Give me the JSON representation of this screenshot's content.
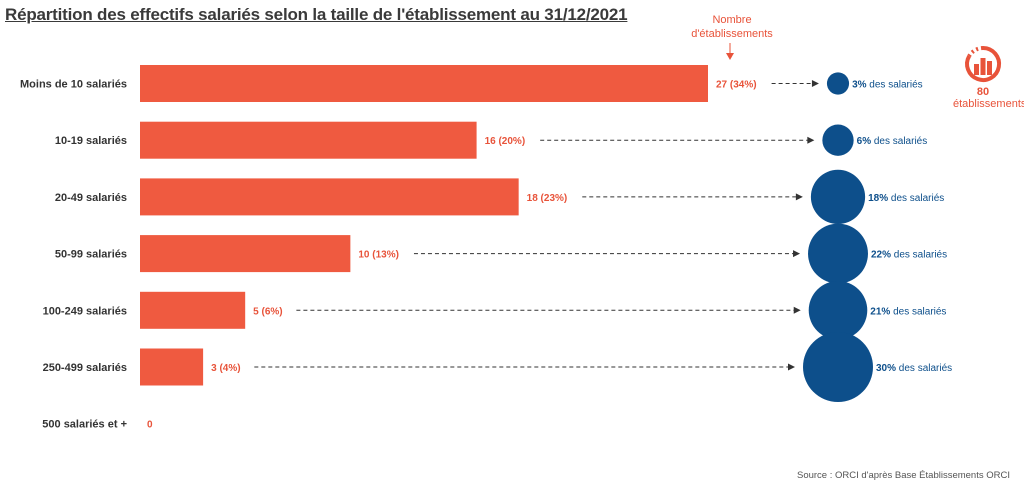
{
  "title": "Répartition des effectifs salariés selon la taille de l'établissement au 31/12/2021",
  "source": "Source : ORCI d'après Base Établissements ORCI",
  "annotation_label": "Nombre d'établissements",
  "total": {
    "value": "80",
    "label": "établissements",
    "icon": "building-chart-icon"
  },
  "colors": {
    "bar": "#ef5a40",
    "bar_label": "#e8533a",
    "bubble": "#0d4f8b",
    "text": "#333333"
  },
  "chart_data": {
    "type": "bar",
    "orientation": "horizontal",
    "categories": [
      "Moins de 10 salariés",
      "10-19 salariés",
      "20-49 salariés",
      "50-99 salariés",
      "100-249 salariés",
      "250-499 salariés",
      "500 salariés et +"
    ],
    "values": [
      27,
      16,
      18,
      10,
      5,
      3,
      0
    ],
    "bar_labels": [
      "27 (34%)",
      "16 (20%)",
      "18 (23%)",
      "10 (13%)",
      "5 (6%)",
      "3 (4%)",
      "0"
    ],
    "share_of_employees": [
      3,
      6,
      18,
      22,
      21,
      30,
      null
    ],
    "share_labels_value": [
      "3%",
      "6%",
      "18%",
      "22%",
      "21%",
      "30%",
      ""
    ],
    "share_labels_suffix": " des salariés",
    "xlim": [
      0,
      27
    ]
  }
}
